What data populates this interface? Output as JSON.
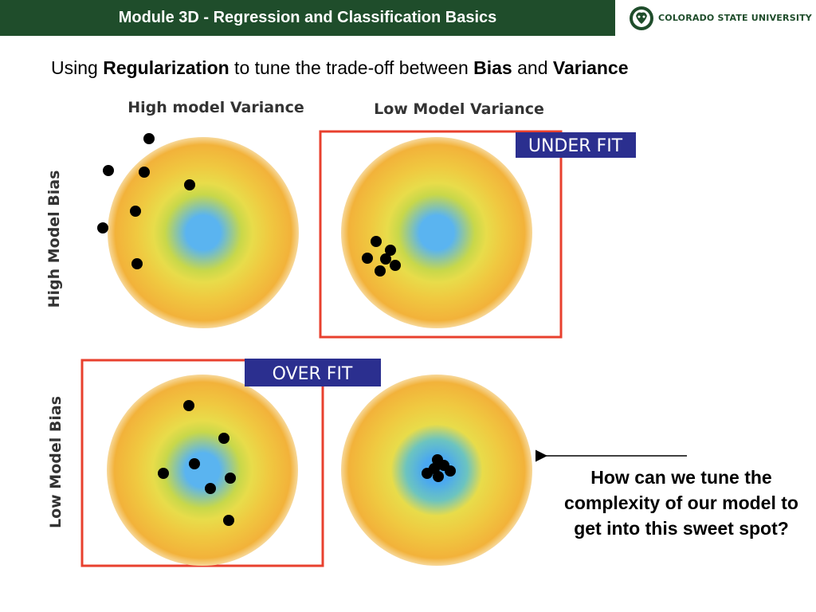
{
  "header": {
    "title": "Module  3D - Regression and Classification Basics",
    "logo_text": "COLORADO STATE UNIVERSITY"
  },
  "subtitle": {
    "prefix": "Using ",
    "term1": "Regularization",
    "middle": " to tune the trade-off between ",
    "term2": "Bias",
    "and": " and ",
    "term3": "Variance"
  },
  "diagram": {
    "column_labels": [
      "High model Variance",
      "Low Model Variance"
    ],
    "row_labels": [
      "High Model Bias",
      "Low Model Bias"
    ],
    "badges": {
      "under_fit": "UNDER FIT",
      "over_fit": "OVER FIT"
    },
    "colors": {
      "target_outer": "#f2b23a",
      "target_mid": "#e8dc4a",
      "target_center": "#5ab4f0",
      "frame": "#e8402e",
      "badge_bg": "#2b2f8f",
      "badge_text": "#ffffff",
      "dot": "#000000"
    },
    "callout": "How can we tune the complexity of our model to get into this sweet spot?"
  }
}
